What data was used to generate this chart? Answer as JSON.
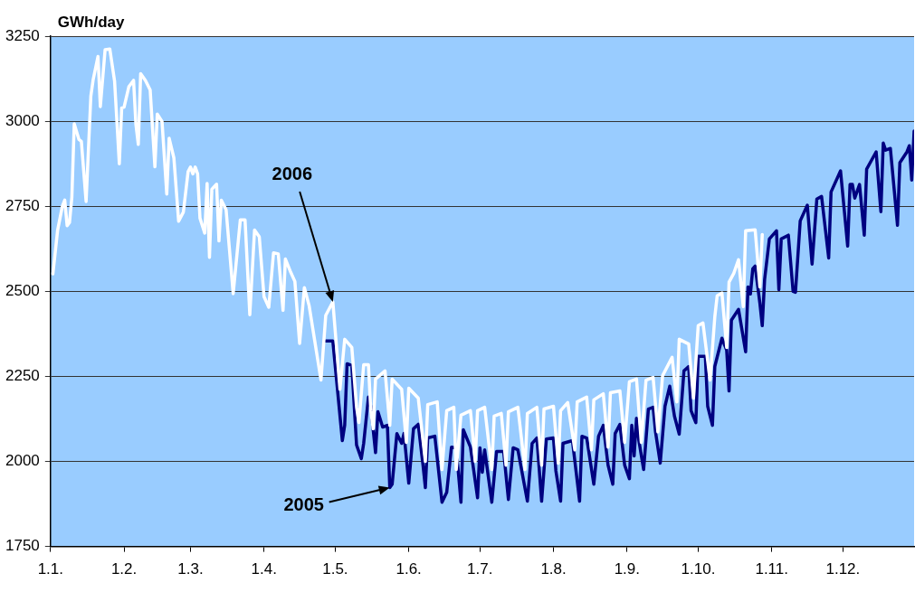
{
  "chart_data": {
    "type": "line",
    "ylabel": "GWh/day",
    "xlim": [
      "--01-01",
      "--12-31"
    ],
    "ylim": [
      1750,
      3250
    ],
    "yticks": [
      1750,
      2000,
      2250,
      2500,
      2750,
      3000,
      3250
    ],
    "xticks": [
      {
        "value": "--01-01",
        "label": "1.1."
      },
      {
        "value": "--02-01",
        "label": "1.2."
      },
      {
        "value": "--03-01",
        "label": "1.3."
      },
      {
        "value": "--04-01",
        "label": "1.4."
      },
      {
        "value": "--05-01",
        "label": "1.5."
      },
      {
        "value": "--06-01",
        "label": "1.6."
      },
      {
        "value": "--07-01",
        "label": "1.7."
      },
      {
        "value": "--08-01",
        "label": "1.8."
      },
      {
        "value": "--09-01",
        "label": "1.9."
      },
      {
        "value": "--10-01",
        "label": "1.10."
      },
      {
        "value": "--11-01",
        "label": "1.11."
      },
      {
        "value": "--12-01",
        "label": "1.12."
      }
    ],
    "grid": "y",
    "marker": "none",
    "line_style": "solid",
    "annotations": [
      {
        "text": "2006",
        "x": "--04-30",
        "y": 2469
      },
      {
        "text": "2005",
        "x": "--05-24",
        "y": 1923
      }
    ],
    "series": [
      {
        "color": "#ffffff",
        "x": [
          "--01-02",
          "--01-04",
          "--01-06",
          "--01-07",
          "--01-08",
          "--01-09",
          "--01-10",
          "--01-11",
          "--01-13",
          "--01-14",
          "--01-16",
          "--01-18",
          "--01-19",
          "--01-21",
          "--01-22",
          "--01-24",
          "--01-26",
          "--01-28",
          "--01-30",
          "--01-31",
          "--02-01",
          "--02-03",
          "--02-05",
          "--02-06",
          "--02-07",
          "--02-08",
          "--02-10",
          "--02-12",
          "--02-14",
          "--02-15",
          "--02-17",
          "--02-19",
          "--02-20",
          "--02-22",
          "--02-24",
          "--02-26",
          "--02-28",
          "--03-01",
          "--03-02",
          "--03-03",
          "--03-04",
          "--03-05",
          "--03-07",
          "--03-08",
          "--03-09",
          "--03-10",
          "--03-12",
          "--03-13",
          "--03-14",
          "--03-16",
          "--03-19",
          "--03-22",
          "--03-24",
          "--03-26",
          "--03-28",
          "--03-30",
          "--04-01",
          "--04-03",
          "--04-05",
          "--04-07",
          "--04-09",
          "--04-10",
          "--04-12",
          "--04-14",
          "--04-16",
          "--04-18",
          "--04-20",
          "--04-25",
          "--04-27",
          "--04-30",
          "--05-03",
          "--05-05",
          "--05-08",
          "--05-10",
          "--05-11",
          "--05-13",
          "--05-15",
          "--05-16",
          "--05-17",
          "--05-18",
          "--05-22",
          "--05-24",
          "--05-25",
          "--05-29",
          "--05-31",
          "--06-01",
          "--06-05",
          "--06-08",
          "--06-09",
          "--06-13",
          "--06-15",
          "--06-17",
          "--06-20",
          "--06-21",
          "--06-23",
          "--06-27",
          "--06-29",
          "--06-30",
          "--07-03",
          "--07-06",
          "--07-07",
          "--07-10",
          "--07-12",
          "--07-13",
          "--07-17",
          "--07-20",
          "--07-21",
          "--07-25",
          "--07-27",
          "--07-28",
          "--08-01",
          "--08-03",
          "--08-04",
          "--08-07",
          "--08-10",
          "--08-11",
          "--08-15",
          "--08-17",
          "--08-18",
          "--08-22",
          "--08-24",
          "--08-25",
          "--08-29",
          "--08-31",
          "--09-02",
          "--09-05",
          "--09-07",
          "--09-09",
          "--09-12",
          "--09-14",
          "--09-16",
          "--09-20",
          "--09-22",
          "--09-23",
          "--09-27",
          "--09-29",
          "--10-01",
          "--10-03",
          "--10-06",
          "--10-08",
          "--10-09",
          "--10-11",
          "--10-13",
          "--10-14",
          "--10-16",
          "--10-18",
          "--10-20",
          "--10-21",
          "--10-25",
          "--10-27",
          "--10-28"
        ],
        "values": [
          2551,
          2680,
          2750,
          2768,
          2693,
          2702,
          2777,
          2992,
          2946,
          2941,
          2764,
          3074,
          3123,
          3190,
          3043,
          3210,
          3212,
          3118,
          2875,
          3039,
          3041,
          3101,
          3120,
          2990,
          2932,
          3140,
          3120,
          3092,
          2866,
          3021,
          2999,
          2786,
          2950,
          2892,
          2706,
          2733,
          2852,
          2865,
          2845,
          2865,
          2845,
          2715,
          2671,
          2817,
          2600,
          2800,
          2815,
          2648,
          2768,
          2740,
          2493,
          2710,
          2710,
          2431,
          2680,
          2660,
          2484,
          2453,
          2613,
          2610,
          2444,
          2595,
          2560,
          2529,
          2347,
          2511,
          2458,
          2239,
          2429,
          2469,
          2212,
          2359,
          2335,
          2159,
          2114,
          2284,
          2284,
          2149,
          2096,
          2242,
          2266,
          2106,
          2242,
          2212,
          2056,
          2215,
          2186,
          2000,
          2167,
          2175,
          1976,
          2149,
          2159,
          1976,
          2136,
          2149,
          2000,
          2149,
          2159,
          1976,
          2133,
          2141,
          1989,
          2146,
          2159,
          1976,
          2141,
          2159,
          1989,
          2154,
          2162,
          1995,
          2149,
          2173,
          2034,
          2175,
          2189,
          2034,
          2181,
          2199,
          2042,
          2202,
          2207,
          2056,
          2234,
          2242,
          2056,
          2239,
          2247,
          2087,
          2252,
          2306,
          2175,
          2359,
          2345,
          2186,
          2399,
          2407,
          2239,
          2425,
          2487,
          2495,
          2335,
          2527,
          2553,
          2593,
          2455,
          2678,
          2681,
          2513,
          2667
        ]
      },
      {
        "color": "#000080",
        "x": [
          "--04-27",
          "--04-30",
          "--05-04",
          "--05-05",
          "--05-06",
          "--05-08",
          "--05-10",
          "--05-12",
          "--05-13",
          "--05-15",
          "--05-16",
          "--05-18",
          "--05-19",
          "--05-21",
          "--05-23",
          "--05-24",
          "--05-25",
          "--05-27",
          "--05-29",
          "--05-30",
          "--06-01",
          "--06-03",
          "--06-05",
          "--06-07",
          "--06-08",
          "--06-09",
          "--06-12",
          "--06-15",
          "--06-17",
          "--06-19",
          "--06-21",
          "--06-23",
          "--06-24",
          "--06-27",
          "--06-30",
          "--07-01",
          "--07-02",
          "--07-03",
          "--07-06",
          "--07-08",
          "--07-11",
          "--07-13",
          "--07-15",
          "--07-17",
          "--07-21",
          "--07-23",
          "--07-25",
          "--07-27",
          "--07-29",
          "--08-01",
          "--08-02",
          "--08-04",
          "--08-05",
          "--08-09",
          "--08-12",
          "--08-13",
          "--08-15",
          "--08-18",
          "--08-20",
          "--08-22",
          "--08-24",
          "--08-26",
          "--08-27",
          "--08-29",
          "--08-31",
          "--09-02",
          "--09-03",
          "--09-04",
          "--09-05",
          "--09-06",
          "--09-08",
          "--09-10",
          "--09-12",
          "--09-13",
          "--09-15",
          "--09-17",
          "--09-19",
          "--09-21",
          "--09-23",
          "--09-25",
          "--09-27",
          "--09-28",
          "--09-30",
          "--10-01",
          "--10-04",
          "--10-05",
          "--10-07",
          "--10-08",
          "--10-11",
          "--10-13",
          "--10-14",
          "--10-15",
          "--10-18",
          "--10-21",
          "--10-22",
          "--10-23",
          "--10-24",
          "--10-25",
          "--10-27",
          "--10-28",
          "--10-29",
          "--10-31",
          "--11-03",
          "--11-04",
          "--11-05",
          "--11-08",
          "--11-10",
          "--11-11",
          "--11-13",
          "--11-16",
          "--11-18",
          "--11-20",
          "--11-22",
          "--11-25",
          "--11-26",
          "--11-30",
          "--12-03",
          "--12-04",
          "--12-05",
          "--12-06",
          "--12-08",
          "--12-10",
          "--12-11",
          "--12-15",
          "--12-17",
          "--12-18",
          "--12-19",
          "--12-21",
          "--12-24",
          "--12-25",
          "--12-28",
          "--12-29",
          "--12-30",
          "--12-31"
        ],
        "values": [
          2354,
          2354,
          2061,
          2106,
          2287,
          2282,
          2048,
          2008,
          2053,
          2189,
          2162,
          2026,
          2146,
          2101,
          2106,
          1923,
          1933,
          2082,
          2053,
          2082,
          1936,
          2096,
          2109,
          1989,
          1923,
          2069,
          2074,
          1880,
          1909,
          2042,
          2040,
          1880,
          2093,
          2042,
          1893,
          2040,
          1968,
          2034,
          1880,
          2029,
          2029,
          1888,
          2040,
          2034,
          1883,
          2053,
          2069,
          1883,
          2066,
          2069,
          1973,
          1883,
          2053,
          2061,
          1883,
          2074,
          2069,
          1933,
          2074,
          2106,
          1989,
          1933,
          2082,
          2109,
          1989,
          1949,
          2106,
          2016,
          2127,
          2061,
          1976,
          2154,
          2159,
          2087,
          1995,
          2162,
          2221,
          2133,
          2080,
          2266,
          2279,
          2149,
          2114,
          2309,
          2309,
          2162,
          2106,
          2279,
          2362,
          2327,
          2207,
          2415,
          2447,
          2322,
          2513,
          2492,
          2566,
          2574,
          2465,
          2399,
          2535,
          2654,
          2678,
          2505,
          2654,
          2665,
          2500,
          2497,
          2707,
          2753,
          2580,
          2771,
          2779,
          2598,
          2792,
          2854,
          2633,
          2814,
          2814,
          2774,
          2814,
          2665,
          2859,
          2910,
          2734,
          2936,
          2915,
          2920,
          2694,
          2878,
          2910,
          2928,
          2827,
          2971
        ]
      }
    ]
  }
}
